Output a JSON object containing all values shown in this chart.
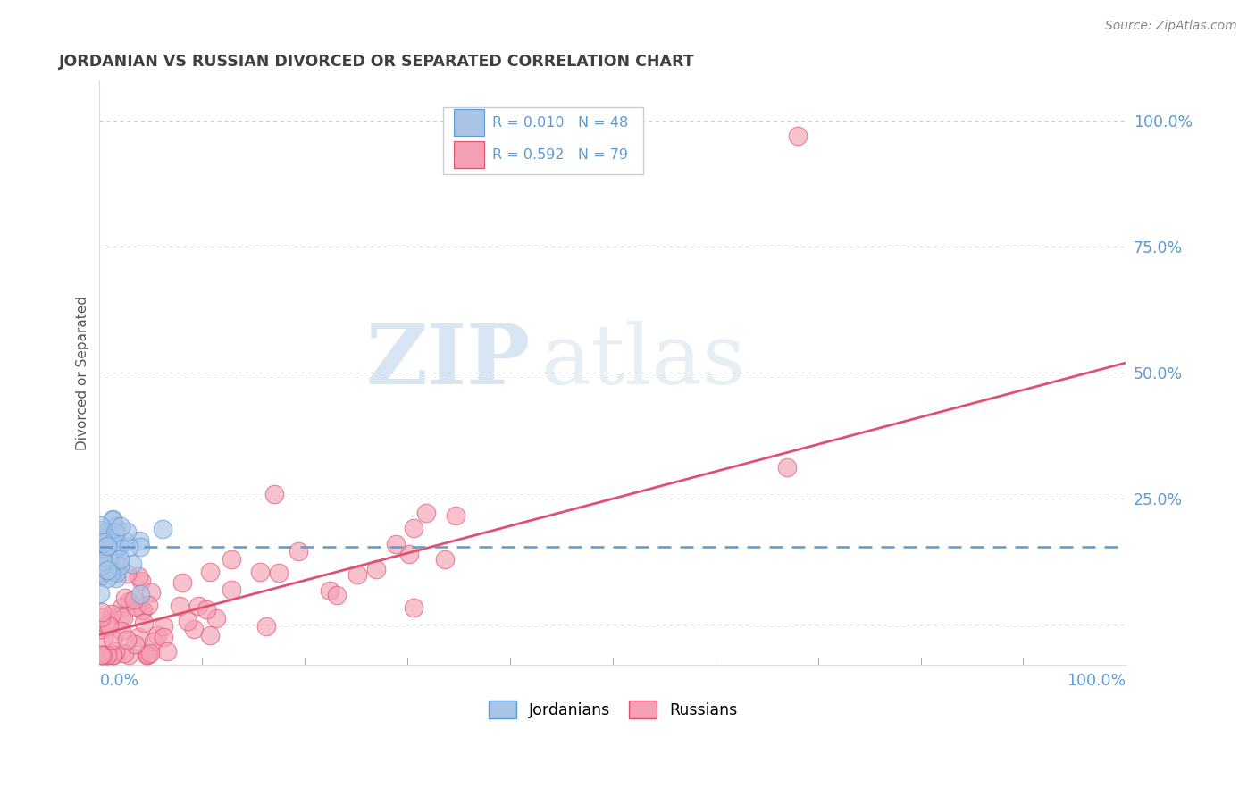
{
  "title": "JORDANIAN VS RUSSIAN DIVORCED OR SEPARATED CORRELATION CHART",
  "source": "Source: ZipAtlas.com",
  "ylabel": "Divorced or Separated",
  "jordanian_color": "#aac4e8",
  "russian_color": "#f4a0b5",
  "jordanian_line_color": "#5b9bd5",
  "russian_line_color": "#e05070",
  "background_color": "#ffffff",
  "grid_color": "#c8c8c8",
  "title_color": "#404040",
  "axis_label_color": "#5b9bd5",
  "watermark_zip": "ZIP",
  "watermark_atlas": "atlas",
  "jordanian_R": 0.01,
  "jordanian_N": 48,
  "russian_R": 0.592,
  "russian_N": 79,
  "russ_line_x0": 0.0,
  "russ_line_y0": -0.02,
  "russ_line_x1": 1.0,
  "russ_line_y1": 0.52,
  "jord_line_y": 0.155,
  "xlim": [
    0.0,
    1.0
  ],
  "ylim": [
    -0.08,
    1.08
  ]
}
